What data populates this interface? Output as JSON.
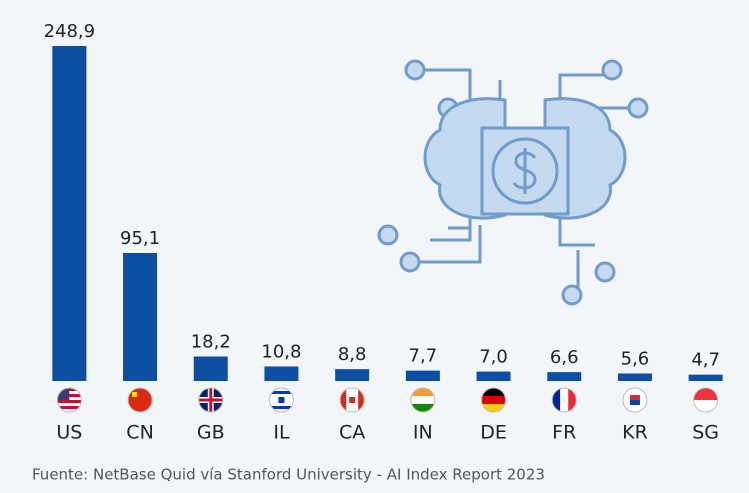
{
  "chart_data": {
    "type": "bar",
    "categories": [
      "US",
      "CN",
      "GB",
      "IL",
      "CA",
      "IN",
      "DE",
      "FR",
      "KR",
      "SG"
    ],
    "values": [
      248.9,
      95.1,
      18.2,
      10.8,
      8.8,
      7.7,
      7.0,
      6.6,
      5.6,
      4.7
    ],
    "value_labels": [
      "248,9",
      "95,1",
      "18,2",
      "10,8",
      "8,8",
      "7,7",
      "7,0",
      "6,6",
      "5,6",
      "4,7"
    ],
    "color": "#0b4ea2",
    "source": "Fuente: NetBase Quid vía Stanford University - AI Index Report 2023"
  }
}
